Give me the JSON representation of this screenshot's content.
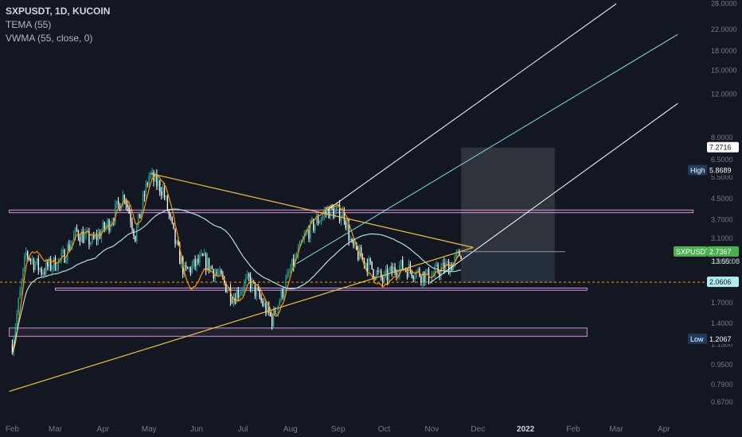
{
  "legend": {
    "title": "SXPUSDT, 1D, KUCOIN",
    "indicator1": "TEMA (55)",
    "indicator2": "VWMA (55, close, 0)"
  },
  "colors": {
    "background": "#131722",
    "up": "#26a69a",
    "down": "#ffffff",
    "tema": "#ff9800",
    "vwma": "#b2dfdb",
    "trend": "#f0c04a",
    "channel_outer": "#ffffff",
    "channel_mid": "#80deea",
    "zone": "#ce93d8",
    "dashed": "#ff9800",
    "axis_text": "#787b86",
    "tag_price": "#4caf50",
    "tag_low_high": "#1e3a5f"
  },
  "chart_data": {
    "type": "candlestick",
    "yscale": "log",
    "ylim": [
      0.56,
      29.0
    ],
    "y_ticks": [
      "28.0000",
      "22.0000",
      "18.0000",
      "15.0000",
      "12.0000",
      "8.0000",
      "6.5000",
      "5.5000",
      "4.5000",
      "3.7000",
      "3.1000",
      "2.5000",
      "1.7000",
      "1.4000",
      "1.1500",
      "0.9500",
      "0.7900",
      "0.6700"
    ],
    "x_ticks": [
      "Feb",
      "Mar",
      "Apr",
      "May",
      "Jun",
      "Jul",
      "Aug",
      "Sep",
      "Oct",
      "Nov",
      "Dec",
      "2022",
      "Feb",
      "Mar",
      "Apr"
    ],
    "price_path": [
      [
        "2021-02-01",
        1.15
      ],
      [
        "2021-02-10",
        2.7
      ],
      [
        "2021-02-20",
        2.3
      ],
      [
        "2021-03-05",
        2.55
      ],
      [
        "2021-03-15",
        3.3
      ],
      [
        "2021-03-25",
        3.0
      ],
      [
        "2021-04-05",
        3.6
      ],
      [
        "2021-04-15",
        4.7
      ],
      [
        "2021-04-22",
        3.2
      ],
      [
        "2021-05-01",
        5.6
      ],
      [
        "2021-05-10",
        4.9
      ],
      [
        "2021-05-18",
        3.0
      ],
      [
        "2021-05-24",
        2.25
      ],
      [
        "2021-06-05",
        2.55
      ],
      [
        "2021-06-15",
        2.2
      ],
      [
        "2021-06-25",
        1.8
      ],
      [
        "2021-07-05",
        2.1
      ],
      [
        "2021-07-20",
        1.45
      ],
      [
        "2021-08-01",
        2.3
      ],
      [
        "2021-08-12",
        3.3
      ],
      [
        "2021-08-25",
        4.05
      ],
      [
        "2021-09-05",
        3.9
      ],
      [
        "2021-09-10",
        2.85
      ],
      [
        "2021-09-20",
        2.45
      ],
      [
        "2021-09-30",
        2.1
      ],
      [
        "2021-10-10",
        2.4
      ],
      [
        "2021-10-20",
        2.3
      ],
      [
        "2021-10-31",
        2.15
      ],
      [
        "2021-11-05",
        2.3
      ],
      [
        "2021-11-15",
        2.45
      ],
      [
        "2021-11-20",
        2.74
      ]
    ],
    "high": 5.8689,
    "low": 1.2067,
    "last_price": 2.7367,
    "countdown": "13:55:08",
    "level_price": 2.0606,
    "box_top_price": 7.2716,
    "labels": {
      "high_tag": "High",
      "high_value": "5.8689",
      "low_tag": "Low",
      "low_value": "1.2067",
      "symbol": "SXPUSDT",
      "last_value": "2.7367",
      "level_value": "2.0606",
      "box_top_value": "7.2716"
    },
    "trendline_upper": [
      [
        "2021-05-02",
        5.7
      ],
      [
        "2021-11-28",
        2.85
      ]
    ],
    "trendline_lower": [
      [
        "2021-01-30",
        0.74
      ],
      [
        "2021-11-28",
        2.85
      ]
    ],
    "channel_outer_upper": [
      [
        "2021-08-25",
        4.05
      ],
      [
        "2022-03-01",
        28.0
      ]
    ],
    "channel_mid": [
      [
        "2021-08-05",
        2.45
      ],
      [
        "2022-04-10",
        21.0
      ]
    ],
    "channel_outer_lower": [
      [
        "2021-10-31",
        2.05
      ],
      [
        "2022-04-10",
        11.0
      ]
    ],
    "zones": [
      {
        "from": "2021-01-30",
        "to": "2022-04-20",
        "high": 4.05,
        "low": 3.95
      },
      {
        "from": "2021-03-01",
        "to": "2022-02-10",
        "high": 1.95,
        "low": 1.91
      },
      {
        "from": "2021-01-30",
        "to": "2022-02-10",
        "high": 1.34,
        "low": 1.24
      }
    ],
    "position_box": {
      "from": "2021-11-20",
      "to": "2022-01-20",
      "top": 7.27,
      "entry": 2.74,
      "bottom": 2.05
    }
  }
}
